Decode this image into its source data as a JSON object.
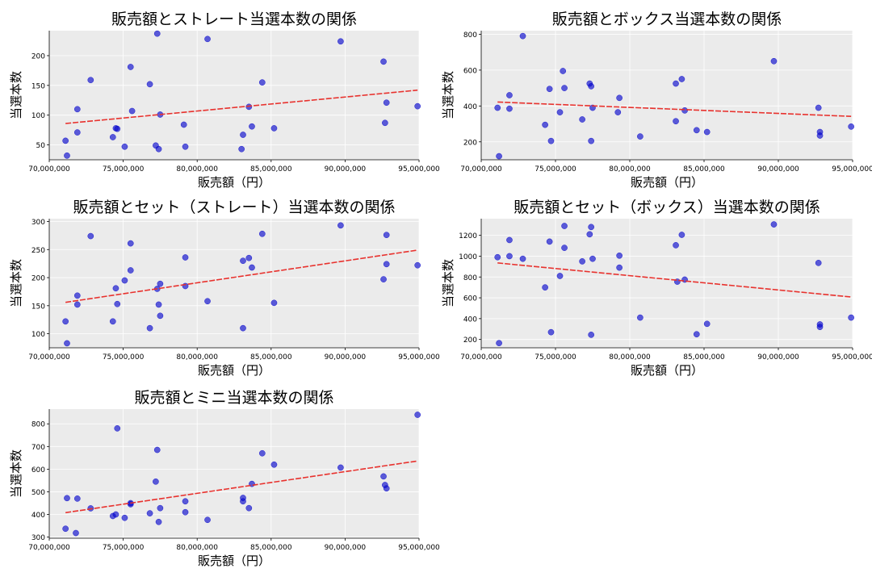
{
  "chart_data": [
    {
      "type": "scatter",
      "title": "販売額とストレート当選本数の関係",
      "xlabel": "販売額（円）",
      "ylabel": "当選本数",
      "xlim": [
        70000000,
        95000000
      ],
      "ylim": [
        25,
        242
      ],
      "xticks": [
        70000000,
        75000000,
        80000000,
        85000000,
        90000000,
        95000000
      ],
      "xtick_labels": [
        "70,000,000",
        "75,000,000",
        "80,000,000",
        "85,000,000",
        "90,000,000",
        "95,000,000"
      ],
      "yticks": [
        50,
        100,
        150,
        200
      ],
      "ytick_labels": [
        "50",
        "100",
        "150",
        "200"
      ],
      "grid": true,
      "point_color": "#0000cc",
      "trend_color": "#e8322e",
      "points": [
        {
          "x": 71100000,
          "y": 57
        },
        {
          "x": 71200000,
          "y": 32
        },
        {
          "x": 71900000,
          "y": 110
        },
        {
          "x": 71900000,
          "y": 71
        },
        {
          "x": 72800000,
          "y": 159
        },
        {
          "x": 74300000,
          "y": 63
        },
        {
          "x": 74500000,
          "y": 78
        },
        {
          "x": 74600000,
          "y": 77
        },
        {
          "x": 75100000,
          "y": 47
        },
        {
          "x": 75500000,
          "y": 181
        },
        {
          "x": 75600000,
          "y": 107
        },
        {
          "x": 76800000,
          "y": 152
        },
        {
          "x": 77200000,
          "y": 49
        },
        {
          "x": 77300000,
          "y": 237
        },
        {
          "x": 77400000,
          "y": 43
        },
        {
          "x": 77500000,
          "y": 101
        },
        {
          "x": 79100000,
          "y": 84
        },
        {
          "x": 79200000,
          "y": 47
        },
        {
          "x": 80700000,
          "y": 228
        },
        {
          "x": 83000000,
          "y": 43
        },
        {
          "x": 83100000,
          "y": 67
        },
        {
          "x": 83500000,
          "y": 114
        },
        {
          "x": 83700000,
          "y": 81
        },
        {
          "x": 84400000,
          "y": 155
        },
        {
          "x": 85200000,
          "y": 78
        },
        {
          "x": 89700000,
          "y": 224
        },
        {
          "x": 92600000,
          "y": 190
        },
        {
          "x": 92700000,
          "y": 87
        },
        {
          "x": 92800000,
          "y": 121
        },
        {
          "x": 94900000,
          "y": 115
        }
      ],
      "trend": {
        "x": [
          71100000,
          94900000
        ],
        "y": [
          86,
          142
        ]
      }
    },
    {
      "type": "scatter",
      "title": "販売額とボックス当選本数の関係",
      "xlabel": "販売額（円）",
      "ylabel": "当選本数",
      "xlim": [
        70000000,
        95000000
      ],
      "ylim": [
        100,
        820
      ],
      "xticks": [
        70000000,
        75000000,
        80000000,
        85000000,
        90000000,
        95000000
      ],
      "xtick_labels": [
        "70,000,000",
        "75,000,000",
        "80,000,000",
        "85,000,000",
        "90,000,000",
        "95,000,000"
      ],
      "yticks": [
        200,
        400,
        600,
        800
      ],
      "ytick_labels": [
        "200",
        "400",
        "600",
        "800"
      ],
      "grid": true,
      "point_color": "#0000cc",
      "trend_color": "#e8322e",
      "points": [
        {
          "x": 71100000,
          "y": 390
        },
        {
          "x": 71200000,
          "y": 120
        },
        {
          "x": 71900000,
          "y": 460
        },
        {
          "x": 71900000,
          "y": 385
        },
        {
          "x": 72800000,
          "y": 790
        },
        {
          "x": 74300000,
          "y": 295
        },
        {
          "x": 74600000,
          "y": 495
        },
        {
          "x": 74700000,
          "y": 205
        },
        {
          "x": 75300000,
          "y": 365
        },
        {
          "x": 75500000,
          "y": 595
        },
        {
          "x": 75600000,
          "y": 500
        },
        {
          "x": 76800000,
          "y": 325
        },
        {
          "x": 77300000,
          "y": 525
        },
        {
          "x": 77400000,
          "y": 205
        },
        {
          "x": 77400000,
          "y": 510
        },
        {
          "x": 77500000,
          "y": 390
        },
        {
          "x": 79200000,
          "y": 365
        },
        {
          "x": 79300000,
          "y": 445
        },
        {
          "x": 80700000,
          "y": 230
        },
        {
          "x": 83100000,
          "y": 315
        },
        {
          "x": 83100000,
          "y": 525
        },
        {
          "x": 83500000,
          "y": 550
        },
        {
          "x": 83700000,
          "y": 375
        },
        {
          "x": 84500000,
          "y": 265
        },
        {
          "x": 85200000,
          "y": 255
        },
        {
          "x": 89700000,
          "y": 650
        },
        {
          "x": 92700000,
          "y": 390
        },
        {
          "x": 92800000,
          "y": 235
        },
        {
          "x": 92800000,
          "y": 255
        },
        {
          "x": 94900000,
          "y": 285
        }
      ],
      "trend": {
        "x": [
          71100000,
          94900000
        ],
        "y": [
          422,
          342
        ]
      }
    },
    {
      "type": "scatter",
      "title": "販売額とセット（ストレート）当選本数の関係",
      "xlabel": "販売額（円）",
      "ylabel": "当選本数",
      "xlim": [
        70000000,
        95000000
      ],
      "ylim": [
        75,
        305
      ],
      "xticks": [
        70000000,
        75000000,
        80000000,
        85000000,
        90000000,
        95000000
      ],
      "xtick_labels": [
        "70,000,000",
        "75,000,000",
        "80,000,000",
        "85,000,000",
        "90,000,000",
        "95,000,000"
      ],
      "yticks": [
        100,
        150,
        200,
        250,
        300
      ],
      "ytick_labels": [
        "100",
        "150",
        "200",
        "250",
        "300"
      ],
      "grid": true,
      "point_color": "#0000cc",
      "trend_color": "#e8322e",
      "points": [
        {
          "x": 71100000,
          "y": 122
        },
        {
          "x": 71200000,
          "y": 83
        },
        {
          "x": 71900000,
          "y": 168
        },
        {
          "x": 71900000,
          "y": 152
        },
        {
          "x": 72800000,
          "y": 274
        },
        {
          "x": 74300000,
          "y": 122
        },
        {
          "x": 74500000,
          "y": 181
        },
        {
          "x": 74600000,
          "y": 153
        },
        {
          "x": 75100000,
          "y": 195
        },
        {
          "x": 75500000,
          "y": 213
        },
        {
          "x": 75500000,
          "y": 261
        },
        {
          "x": 76800000,
          "y": 110
        },
        {
          "x": 77300000,
          "y": 180
        },
        {
          "x": 77400000,
          "y": 152
        },
        {
          "x": 77500000,
          "y": 189
        },
        {
          "x": 77500000,
          "y": 132
        },
        {
          "x": 79200000,
          "y": 236
        },
        {
          "x": 79200000,
          "y": 185
        },
        {
          "x": 80700000,
          "y": 158
        },
        {
          "x": 83100000,
          "y": 110
        },
        {
          "x": 83100000,
          "y": 230
        },
        {
          "x": 83500000,
          "y": 235
        },
        {
          "x": 83700000,
          "y": 218
        },
        {
          "x": 84400000,
          "y": 278
        },
        {
          "x": 85200000,
          "y": 155
        },
        {
          "x": 89700000,
          "y": 293
        },
        {
          "x": 92600000,
          "y": 197
        },
        {
          "x": 92800000,
          "y": 224
        },
        {
          "x": 92800000,
          "y": 276
        },
        {
          "x": 94900000,
          "y": 222
        }
      ],
      "trend": {
        "x": [
          71100000,
          94900000
        ],
        "y": [
          156,
          249
        ]
      }
    },
    {
      "type": "scatter",
      "title": "販売額とセット（ボックス）当選本数の関係",
      "xlabel": "販売額（円）",
      "ylabel": "当選本数",
      "xlim": [
        70000000,
        95000000
      ],
      "ylim": [
        120,
        1360
      ],
      "xticks": [
        70000000,
        75000000,
        80000000,
        85000000,
        90000000,
        95000000
      ],
      "xtick_labels": [
        "70,000,000",
        "75,000,000",
        "80,000,000",
        "85,000,000",
        "90,000,000",
        "95,000,000"
      ],
      "yticks": [
        200,
        400,
        600,
        800,
        1000,
        1200
      ],
      "ytick_labels": [
        "200",
        "400",
        "600",
        "800",
        "1000",
        "1200"
      ],
      "grid": true,
      "point_color": "#0000cc",
      "trend_color": "#e8322e",
      "points": [
        {
          "x": 71100000,
          "y": 990
        },
        {
          "x": 71200000,
          "y": 165
        },
        {
          "x": 71900000,
          "y": 1000
        },
        {
          "x": 71900000,
          "y": 1155
        },
        {
          "x": 72800000,
          "y": 975
        },
        {
          "x": 74300000,
          "y": 700
        },
        {
          "x": 74600000,
          "y": 1140
        },
        {
          "x": 74700000,
          "y": 270
        },
        {
          "x": 75300000,
          "y": 810
        },
        {
          "x": 75600000,
          "y": 1080
        },
        {
          "x": 75600000,
          "y": 1290
        },
        {
          "x": 76800000,
          "y": 950
        },
        {
          "x": 77300000,
          "y": 1210
        },
        {
          "x": 77400000,
          "y": 245
        },
        {
          "x": 77400000,
          "y": 1280
        },
        {
          "x": 77500000,
          "y": 975
        },
        {
          "x": 79300000,
          "y": 890
        },
        {
          "x": 79300000,
          "y": 1005
        },
        {
          "x": 80700000,
          "y": 410
        },
        {
          "x": 83100000,
          "y": 1105
        },
        {
          "x": 83200000,
          "y": 755
        },
        {
          "x": 83500000,
          "y": 1205
        },
        {
          "x": 83700000,
          "y": 775
        },
        {
          "x": 84500000,
          "y": 250
        },
        {
          "x": 85200000,
          "y": 350
        },
        {
          "x": 89700000,
          "y": 1305
        },
        {
          "x": 92700000,
          "y": 935
        },
        {
          "x": 92800000,
          "y": 320
        },
        {
          "x": 92800000,
          "y": 345
        },
        {
          "x": 94900000,
          "y": 410
        }
      ],
      "trend": {
        "x": [
          71100000,
          94900000
        ],
        "y": [
          935,
          608
        ]
      }
    },
    {
      "type": "scatter",
      "title": "販売額とミニ当選本数の関係",
      "xlabel": "販売額（円）",
      "ylabel": "当選本数",
      "xlim": [
        70000000,
        95000000
      ],
      "ylim": [
        295,
        865
      ],
      "xticks": [
        70000000,
        75000000,
        80000000,
        85000000,
        90000000,
        95000000
      ],
      "xtick_labels": [
        "70,000,000",
        "75,000,000",
        "80,000,000",
        "85,000,000",
        "90,000,000",
        "95,000,000"
      ],
      "yticks": [
        300,
        400,
        500,
        600,
        700,
        800
      ],
      "ytick_labels": [
        "300",
        "400",
        "500",
        "600",
        "700",
        "800"
      ],
      "grid": true,
      "point_color": "#0000cc",
      "trend_color": "#e8322e",
      "points": [
        {
          "x": 71100000,
          "y": 337
        },
        {
          "x": 71200000,
          "y": 472
        },
        {
          "x": 71800000,
          "y": 318
        },
        {
          "x": 71900000,
          "y": 470
        },
        {
          "x": 72800000,
          "y": 427
        },
        {
          "x": 74300000,
          "y": 393
        },
        {
          "x": 74500000,
          "y": 400
        },
        {
          "x": 74600000,
          "y": 780
        },
        {
          "x": 75100000,
          "y": 385
        },
        {
          "x": 75500000,
          "y": 450
        },
        {
          "x": 75500000,
          "y": 445
        },
        {
          "x": 76800000,
          "y": 405
        },
        {
          "x": 77200000,
          "y": 545
        },
        {
          "x": 77300000,
          "y": 685
        },
        {
          "x": 77400000,
          "y": 367
        },
        {
          "x": 77500000,
          "y": 428
        },
        {
          "x": 79200000,
          "y": 458
        },
        {
          "x": 79200000,
          "y": 410
        },
        {
          "x": 80700000,
          "y": 376
        },
        {
          "x": 83100000,
          "y": 458
        },
        {
          "x": 83100000,
          "y": 473
        },
        {
          "x": 83500000,
          "y": 428
        },
        {
          "x": 83700000,
          "y": 535
        },
        {
          "x": 84400000,
          "y": 670
        },
        {
          "x": 85200000,
          "y": 620
        },
        {
          "x": 89700000,
          "y": 607
        },
        {
          "x": 92600000,
          "y": 568
        },
        {
          "x": 92700000,
          "y": 530
        },
        {
          "x": 92800000,
          "y": 515
        },
        {
          "x": 94900000,
          "y": 840
        }
      ],
      "trend": {
        "x": [
          71100000,
          94900000
        ],
        "y": [
          408,
          636
        ]
      }
    }
  ]
}
